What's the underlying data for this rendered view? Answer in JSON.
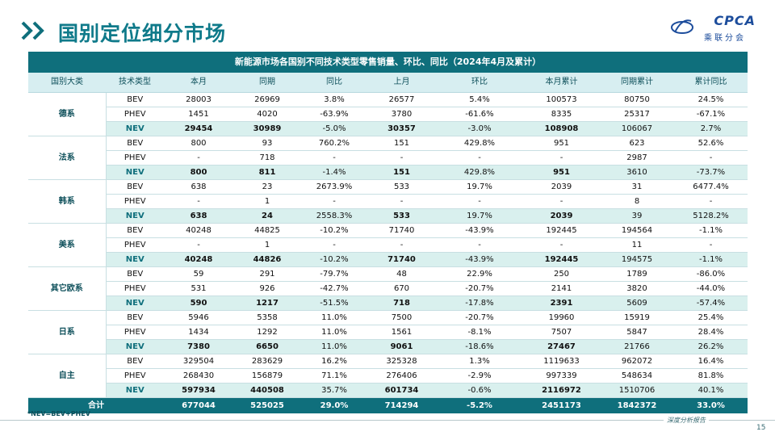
{
  "title": "国别定位细分市场",
  "logo": {
    "text": "CPCA",
    "sub": "乘联分会"
  },
  "table": {
    "caption": "新能源市场各国别不同技术类型零售销量、环比、同比（2024年4月及累计）",
    "headers": [
      "国别大类",
      "技术类型",
      "本月",
      "同期",
      "同比",
      "上月",
      "环比",
      "本月累计",
      "同期累计",
      "累计同比"
    ],
    "groups": [
      {
        "country": "德系",
        "rows": [
          [
            "BEV",
            "28003",
            "26969",
            "3.8%",
            "26577",
            "5.4%",
            "100573",
            "80750",
            "24.5%"
          ],
          [
            "PHEV",
            "1451",
            "4020",
            "-63.9%",
            "3780",
            "-61.6%",
            "8335",
            "25317",
            "-67.1%"
          ],
          [
            "NEV",
            "29454",
            "30989",
            "-5.0%",
            "30357",
            "-3.0%",
            "108908",
            "106067",
            "2.7%"
          ]
        ]
      },
      {
        "country": "法系",
        "rows": [
          [
            "BEV",
            "800",
            "93",
            "760.2%",
            "151",
            "429.8%",
            "951",
            "623",
            "52.6%"
          ],
          [
            "PHEV",
            "-",
            "718",
            "-",
            "-",
            "-",
            "-",
            "2987",
            "-"
          ],
          [
            "NEV",
            "800",
            "811",
            "-1.4%",
            "151",
            "429.8%",
            "951",
            "3610",
            "-73.7%"
          ]
        ]
      },
      {
        "country": "韩系",
        "rows": [
          [
            "BEV",
            "638",
            "23",
            "2673.9%",
            "533",
            "19.7%",
            "2039",
            "31",
            "6477.4%"
          ],
          [
            "PHEV",
            "-",
            "1",
            "-",
            "-",
            "-",
            "-",
            "8",
            "-"
          ],
          [
            "NEV",
            "638",
            "24",
            "2558.3%",
            "533",
            "19.7%",
            "2039",
            "39",
            "5128.2%"
          ]
        ]
      },
      {
        "country": "美系",
        "rows": [
          [
            "BEV",
            "40248",
            "44825",
            "-10.2%",
            "71740",
            "-43.9%",
            "192445",
            "194564",
            "-1.1%"
          ],
          [
            "PHEV",
            "-",
            "1",
            "-",
            "-",
            "-",
            "-",
            "11",
            "-"
          ],
          [
            "NEV",
            "40248",
            "44826",
            "-10.2%",
            "71740",
            "-43.9%",
            "192445",
            "194575",
            "-1.1%"
          ]
        ]
      },
      {
        "country": "其它欧系",
        "rows": [
          [
            "BEV",
            "59",
            "291",
            "-79.7%",
            "48",
            "22.9%",
            "250",
            "1789",
            "-86.0%"
          ],
          [
            "PHEV",
            "531",
            "926",
            "-42.7%",
            "670",
            "-20.7%",
            "2141",
            "3820",
            "-44.0%"
          ],
          [
            "NEV",
            "590",
            "1217",
            "-51.5%",
            "718",
            "-17.8%",
            "2391",
            "5609",
            "-57.4%"
          ]
        ]
      },
      {
        "country": "日系",
        "rows": [
          [
            "BEV",
            "5946",
            "5358",
            "11.0%",
            "7500",
            "-20.7%",
            "19960",
            "15919",
            "25.4%"
          ],
          [
            "PHEV",
            "1434",
            "1292",
            "11.0%",
            "1561",
            "-8.1%",
            "7507",
            "5847",
            "28.4%"
          ],
          [
            "NEV",
            "7380",
            "6650",
            "11.0%",
            "9061",
            "-18.6%",
            "27467",
            "21766",
            "26.2%"
          ]
        ]
      },
      {
        "country": "自主",
        "rows": [
          [
            "BEV",
            "329504",
            "283629",
            "16.2%",
            "325328",
            "1.3%",
            "1119633",
            "962072",
            "16.4%"
          ],
          [
            "PHEV",
            "268430",
            "156879",
            "71.1%",
            "276406",
            "-2.9%",
            "997339",
            "548634",
            "81.8%"
          ],
          [
            "NEV",
            "597934",
            "440508",
            "35.7%",
            "601734",
            "-0.6%",
            "2116972",
            "1510706",
            "40.1%"
          ]
        ]
      }
    ],
    "total": [
      "合计",
      "677044",
      "525025",
      "29.0%",
      "714294",
      "-5.2%",
      "2451173",
      "1842372",
      "33.0%"
    ]
  },
  "note": "*NEV=BEV+PHEV",
  "footer": {
    "text": "深度分析报告",
    "page": "15"
  },
  "colors": {
    "accent": "#0f6f7c",
    "title": "#0f7a8a",
    "header_bg": "#d7eef1",
    "nev_bg": "#d9f0ee"
  }
}
